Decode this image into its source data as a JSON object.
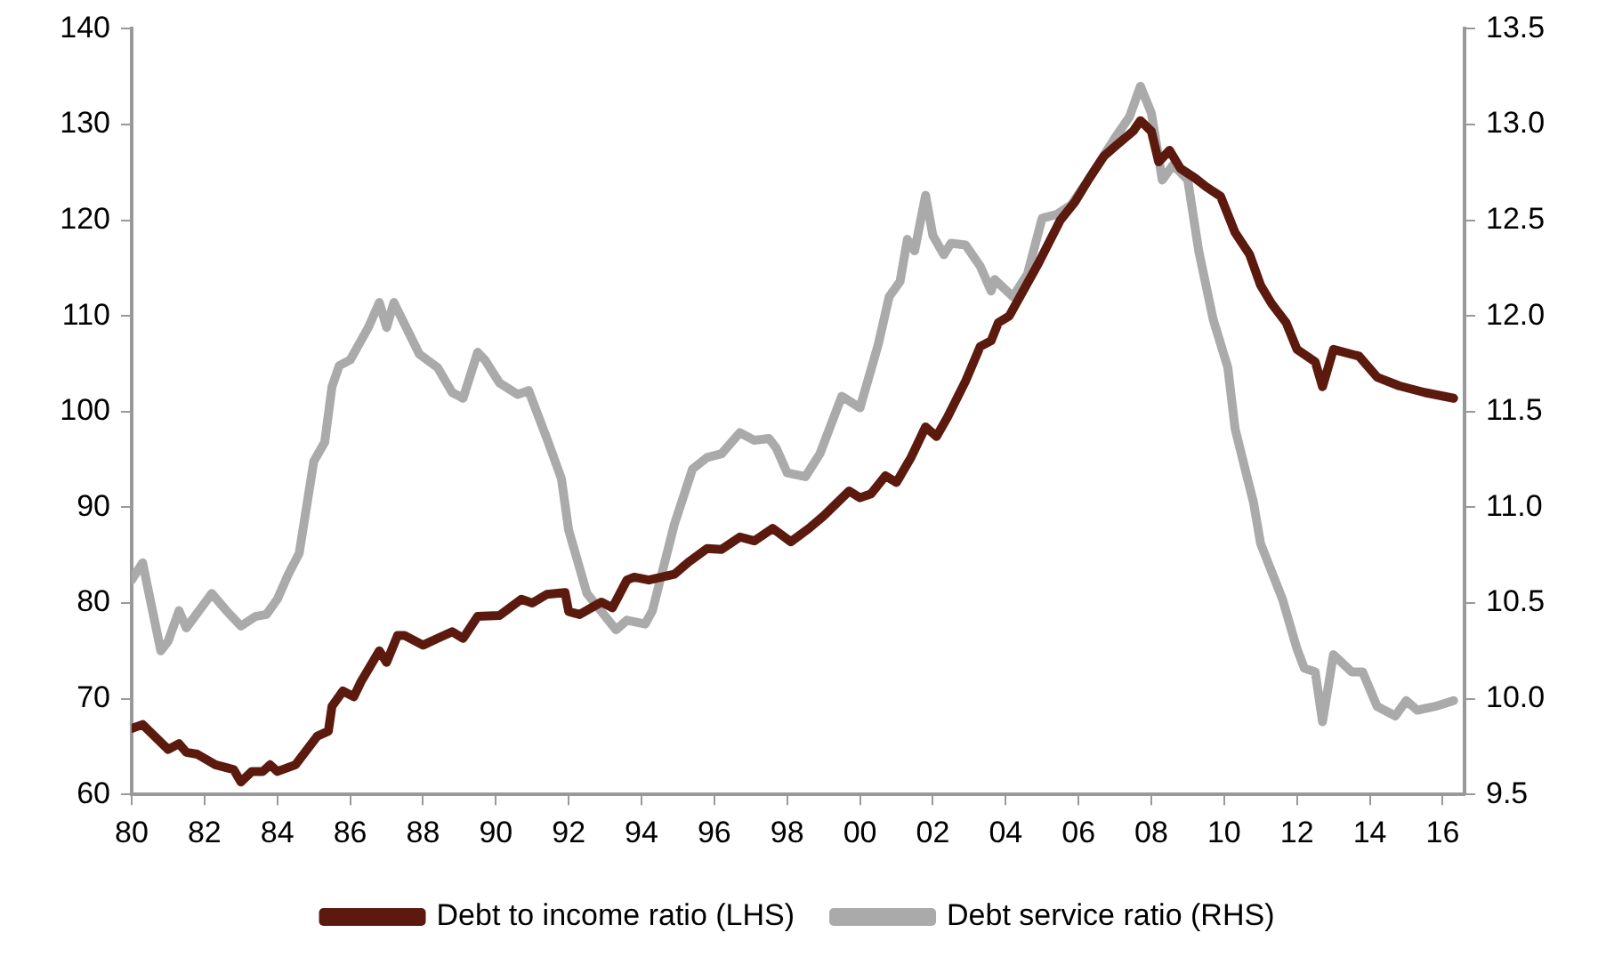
{
  "chart_data": {
    "type": "line",
    "legend": "bottom",
    "grid": false,
    "marker": "none",
    "line_style": "solid",
    "xlim": [
      1980,
      2016.6
    ],
    "xticks": [
      {
        "value": 1980,
        "label": "80"
      },
      {
        "value": 1982,
        "label": "82"
      },
      {
        "value": 1984,
        "label": "84"
      },
      {
        "value": 1986,
        "label": "86"
      },
      {
        "value": 1988,
        "label": "88"
      },
      {
        "value": 1990,
        "label": "90"
      },
      {
        "value": 1992,
        "label": "92"
      },
      {
        "value": 1994,
        "label": "94"
      },
      {
        "value": 1996,
        "label": "96"
      },
      {
        "value": 1998,
        "label": "98"
      },
      {
        "value": 2000,
        "label": "00"
      },
      {
        "value": 2002,
        "label": "02"
      },
      {
        "value": 2004,
        "label": "04"
      },
      {
        "value": 2006,
        "label": "06"
      },
      {
        "value": 2008,
        "label": "08"
      },
      {
        "value": 2010,
        "label": "10"
      },
      {
        "value": 2012,
        "label": "12"
      },
      {
        "value": 2014,
        "label": "14"
      },
      {
        "value": 2016,
        "label": "16"
      }
    ],
    "ylim": [
      60,
      140
    ],
    "yticks": [
      60,
      70,
      80,
      90,
      100,
      110,
      120,
      130,
      140
    ],
    "y2lim": [
      9.5,
      13.5
    ],
    "y2ticks": [
      {
        "value": 9.5,
        "label": "9.5"
      },
      {
        "value": 10,
        "label": "10.0"
      },
      {
        "value": 10.5,
        "label": "10.5"
      },
      {
        "value": 11,
        "label": "11.0"
      },
      {
        "value": 11.5,
        "label": "11.5"
      },
      {
        "value": 12,
        "label": "12.0"
      },
      {
        "value": 12.5,
        "label": "12.5"
      },
      {
        "value": 13,
        "label": "13.0"
      },
      {
        "value": 13.5,
        "label": "13.5"
      }
    ],
    "series": [
      {
        "name": "Debt to income ratio (LHS)",
        "color": "#5c1a0e",
        "x": [
          1980.0,
          1980.3,
          1981.0,
          1981.3,
          1981.5,
          1981.8,
          1982.3,
          1982.8,
          1983.0,
          1983.3,
          1983.6,
          1983.8,
          1984.0,
          1984.5,
          1985.1,
          1985.4,
          1985.5,
          1985.8,
          1986.1,
          1986.3,
          1986.8,
          1987.0,
          1987.3,
          1987.5,
          1988.0,
          1988.4,
          1988.8,
          1989.1,
          1989.5,
          1990.1,
          1990.7,
          1991.0,
          1991.4,
          1991.9,
          1992.0,
          1992.3,
          1992.9,
          1993.2,
          1993.6,
          1993.8,
          1994.2,
          1994.9,
          1995.3,
          1995.8,
          1996.2,
          1996.7,
          1997.1,
          1997.6,
          1998.1,
          1998.6,
          1999.0,
          1999.7,
          2000.0,
          2000.3,
          2000.7,
          2001.0,
          2001.4,
          2001.8,
          2002.1,
          2002.4,
          2002.9,
          2003.3,
          2003.6,
          2003.8,
          2004.1,
          2004.9,
          2005.5,
          2005.9,
          2006.3,
          2006.7,
          2007.0,
          2007.5,
          2007.7,
          2008.0,
          2008.2,
          2008.5,
          2008.8,
          2009.2,
          2009.5,
          2009.9,
          2010.3,
          2010.7,
          2011.0,
          2011.3,
          2011.7,
          2012.0,
          2012.5,
          2012.7,
          2013.0,
          2013.7,
          2014.2,
          2014.8,
          2015.5,
          2016.3
        ],
        "values": [
          66.9,
          67.3,
          64.7,
          65.3,
          64.4,
          64.2,
          63.1,
          62.6,
          61.3,
          62.4,
          62.4,
          63.1,
          62.4,
          63.1,
          66.1,
          66.6,
          69.2,
          70.8,
          70.2,
          71.8,
          75.0,
          73.8,
          76.6,
          76.6,
          75.6,
          76.3,
          77.0,
          76.3,
          78.6,
          78.7,
          80.4,
          80.0,
          80.9,
          81.1,
          79.1,
          78.8,
          80.1,
          79.5,
          82.4,
          82.7,
          82.4,
          83.0,
          84.3,
          85.7,
          85.6,
          86.9,
          86.5,
          87.8,
          86.4,
          87.8,
          89.1,
          91.7,
          91.0,
          91.4,
          93.3,
          92.6,
          95.2,
          98.4,
          97.4,
          99.4,
          103.2,
          106.8,
          107.4,
          109.3,
          110.0,
          115.5,
          120.0,
          121.9,
          124.4,
          126.7,
          127.7,
          129.3,
          130.4,
          129.3,
          126.1,
          127.3,
          125.4,
          124.4,
          123.5,
          122.5,
          118.7,
          116.4,
          113.2,
          111.3,
          109.3,
          106.5,
          105.2,
          102.6,
          106.5,
          105.8,
          103.6,
          102.7,
          102.0,
          101.4
        ]
      },
      {
        "name": "Debt service ratio (RHS)",
        "color": "#aaaaaa",
        "axis": "y2",
        "x": [
          1980.0,
          1980.3,
          1980.8,
          1981.0,
          1981.3,
          1981.5,
          1982.2,
          1982.6,
          1983.0,
          1983.4,
          1983.7,
          1984.0,
          1984.3,
          1984.6,
          1985.0,
          1985.3,
          1985.5,
          1985.7,
          1986.0,
          1986.5,
          1986.8,
          1987.0,
          1987.2,
          1987.9,
          1988.4,
          1988.8,
          1989.1,
          1989.5,
          1989.7,
          1990.1,
          1990.6,
          1990.9,
          1991.4,
          1991.8,
          1992.0,
          1992.5,
          1993.3,
          1993.6,
          1994.1,
          1994.3,
          1994.9,
          1995.4,
          1995.8,
          1996.2,
          1996.7,
          1997.1,
          1997.5,
          1997.7,
          1998.0,
          1998.5,
          1998.9,
          1999.5,
          2000.0,
          2000.5,
          2000.8,
          2001.1,
          2001.3,
          2001.5,
          2001.8,
          2002.0,
          2002.3,
          2002.5,
          2002.9,
          2003.3,
          2003.6,
          2003.7,
          2004.2,
          2004.6,
          2005.0,
          2005.4,
          2005.8,
          2006.3,
          2007.0,
          2007.4,
          2007.7,
          2008.0,
          2008.3,
          2008.6,
          2009.0,
          2009.3,
          2009.7,
          2010.1,
          2010.3,
          2010.6,
          2010.8,
          2011.0,
          2011.6,
          2012.0,
          2012.2,
          2012.5,
          2012.7,
          2013.0,
          2013.5,
          2013.8,
          2014.2,
          2014.7,
          2015.0,
          2015.3,
          2015.8,
          2016.3
        ],
        "values": [
          10.62,
          10.71,
          10.25,
          10.3,
          10.46,
          10.37,
          10.55,
          10.46,
          10.38,
          10.43,
          10.44,
          10.52,
          10.65,
          10.76,
          11.24,
          11.34,
          11.63,
          11.74,
          11.77,
          11.94,
          12.07,
          11.94,
          12.07,
          11.8,
          11.73,
          11.6,
          11.57,
          11.81,
          11.77,
          11.65,
          11.59,
          11.61,
          11.36,
          11.15,
          10.88,
          10.55,
          10.36,
          10.41,
          10.39,
          10.46,
          10.91,
          11.2,
          11.26,
          11.28,
          11.39,
          11.35,
          11.36,
          11.31,
          11.18,
          11.16,
          11.28,
          11.58,
          11.52,
          11.85,
          12.1,
          12.18,
          12.4,
          12.34,
          12.63,
          12.42,
          12.32,
          12.38,
          12.37,
          12.26,
          12.13,
          12.19,
          12.1,
          12.22,
          12.51,
          12.53,
          12.58,
          12.72,
          12.93,
          13.04,
          13.2,
          13.06,
          12.71,
          12.79,
          12.71,
          12.34,
          11.98,
          11.73,
          11.41,
          11.18,
          11.03,
          10.81,
          10.52,
          10.26,
          10.16,
          10.14,
          9.88,
          10.23,
          10.14,
          10.14,
          9.96,
          9.91,
          9.99,
          9.94,
          9.96,
          9.99
        ]
      }
    ]
  }
}
